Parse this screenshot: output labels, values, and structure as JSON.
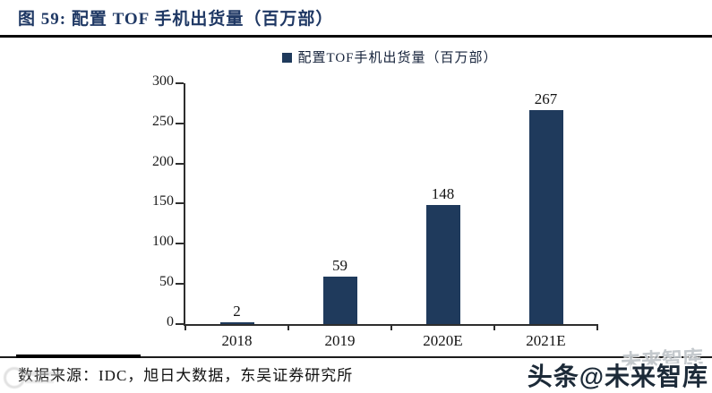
{
  "figure": {
    "title": "图 59:  配置 TOF 手机出货量（百万部）",
    "source_note": "数据来源：IDC，旭日大数据，东吴证券研究所",
    "watermark_main": "头条@未来智库",
    "watermark_ghost": "未来智库"
  },
  "chart_data": {
    "type": "bar",
    "title": "配置TOF手机出货量（百万部）",
    "legend": [
      "配置TOF手机出货量（百万部）"
    ],
    "legend_position": "top-center",
    "categories": [
      "2018",
      "2019",
      "2020E",
      "2021E"
    ],
    "values": [
      2,
      59,
      148,
      267
    ],
    "xlabel": "",
    "ylabel": "",
    "ylim": [
      0,
      300
    ],
    "yticks": [
      0,
      50,
      100,
      150,
      200,
      250,
      300
    ],
    "grid": false,
    "bar_color": "#1f3a5c"
  },
  "colors": {
    "title": "#1f3864",
    "bar": "#1f3a5c",
    "axis": "#2e2e2e",
    "rule": "#0a0a0a"
  }
}
